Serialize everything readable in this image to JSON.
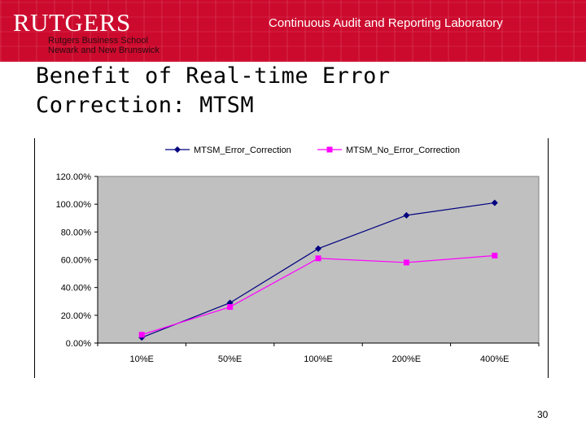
{
  "header": {
    "logo_word": "RUTGERS",
    "logo_line1": "Rutgers Business School",
    "logo_line2": "Newark and New Brunswick",
    "lab_title": "Continuous Audit and Reporting Laboratory"
  },
  "slide": {
    "title_line1": "Benefit of Real-time Error",
    "title_line2": "Correction: MTSM",
    "page_number": "30"
  },
  "colors": {
    "banner": "#cc0a2d",
    "series_error_correction": "#000080",
    "series_no_error_correction": "#ff00ff",
    "plot_background": "#c0c0c0"
  },
  "chart_data": {
    "type": "line",
    "categories": [
      "10%E",
      "50%E",
      "100%E",
      "200%E",
      "400%E"
    ],
    "series": [
      {
        "name": "MTSM_Error_Correction",
        "marker": "diamond",
        "values": [
          4,
          29,
          68,
          92,
          101
        ]
      },
      {
        "name": "MTSM_No_Error_Correction",
        "marker": "square",
        "values": [
          6,
          26,
          61,
          58,
          63
        ]
      }
    ],
    "yticks": [
      "0.00%",
      "20.00%",
      "40.00%",
      "60.00%",
      "80.00%",
      "100.00%",
      "120.00%"
    ],
    "ylim": [
      0,
      120
    ],
    "ystep": 20,
    "grid": false,
    "legend_position": "top",
    "title": "",
    "xlabel": "",
    "ylabel": ""
  }
}
